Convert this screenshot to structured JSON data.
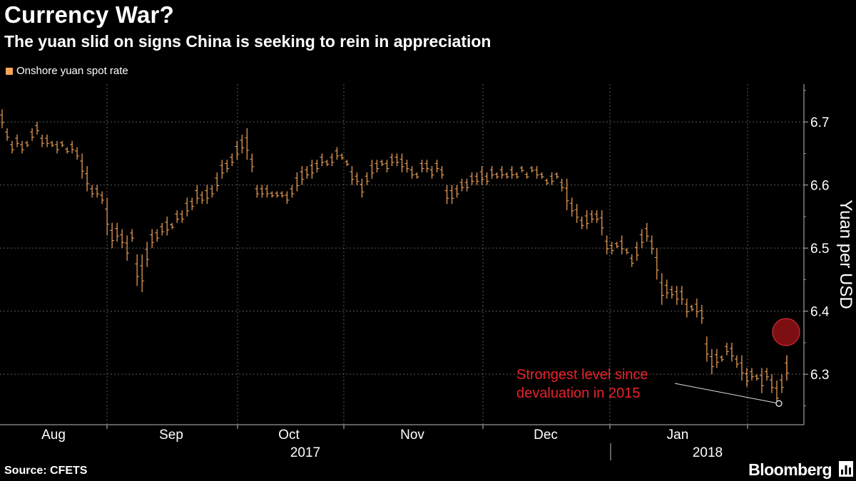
{
  "header": {
    "title": "Currency War?",
    "subtitle": "The yuan slid on signs China is seeking to rein in appreciation"
  },
  "legend": {
    "label": "Onshore yuan spot rate",
    "color": "#f5a65b"
  },
  "footer": {
    "source": "Source: CFETS",
    "brand": "Bloomberg"
  },
  "annotation": {
    "lines": [
      "Strongest level since",
      "devaluation in 2015"
    ],
    "color": "#e8222b",
    "point_value": 6.2536
  },
  "chart_data": {
    "type": "ohlc",
    "title": "Currency War?",
    "subtitle": "The yuan slid on signs China is seeking to rein in appreciation",
    "ylabel": "Yuan per USD",
    "ylim": [
      6.22,
      6.76
    ],
    "yticks": [
      6.3,
      6.4,
      6.5,
      6.6,
      6.7
    ],
    "y_tick_labels": [
      "6.3",
      "6.4",
      "6.5",
      "6.6",
      "6.7"
    ],
    "x_month_labels": [
      "Aug",
      "Sep",
      "Oct",
      "Nov",
      "Dec",
      "Jan"
    ],
    "x_year_labels": [
      "2017",
      "2018"
    ],
    "grid": true,
    "legend_position": "top-left",
    "series": [
      {
        "name": "Onshore yuan spot rate",
        "color": "#f5a65b",
        "values": [
          [
            6.72,
            6.69
          ],
          [
            6.69,
            6.67
          ],
          [
            6.67,
            6.65
          ],
          [
            6.68,
            6.66
          ],
          [
            6.67,
            6.65
          ],
          [
            6.67,
            6.66
          ],
          [
            6.69,
            6.67
          ],
          [
            6.7,
            6.68
          ],
          [
            6.68,
            6.66
          ],
          [
            6.68,
            6.66
          ],
          [
            6.67,
            6.66
          ],
          [
            6.67,
            6.65
          ],
          [
            6.67,
            6.66
          ],
          [
            6.66,
            6.65
          ],
          [
            6.67,
            6.65
          ],
          [
            6.66,
            6.64
          ],
          [
            6.65,
            6.61
          ],
          [
            6.63,
            6.59
          ],
          [
            6.6,
            6.58
          ],
          [
            6.6,
            6.58
          ],
          [
            6.59,
            6.57
          ],
          [
            6.58,
            6.52
          ],
          [
            6.54,
            6.5
          ],
          [
            6.54,
            6.51
          ],
          [
            6.53,
            6.5
          ],
          [
            6.52,
            6.48
          ],
          [
            6.53,
            6.51
          ],
          [
            6.49,
            6.44
          ],
          [
            6.49,
            6.43
          ],
          [
            6.51,
            6.47
          ],
          [
            6.53,
            6.5
          ],
          [
            6.53,
            6.51
          ],
          [
            6.54,
            6.52
          ],
          [
            6.55,
            6.52
          ],
          [
            6.54,
            6.53
          ],
          [
            6.56,
            6.54
          ],
          [
            6.56,
            6.54
          ],
          [
            6.58,
            6.55
          ],
          [
            6.58,
            6.56
          ],
          [
            6.6,
            6.57
          ],
          [
            6.59,
            6.57
          ],
          [
            6.6,
            6.57
          ],
          [
            6.6,
            6.58
          ],
          [
            6.62,
            6.59
          ],
          [
            6.64,
            6.61
          ],
          [
            6.64,
            6.62
          ],
          [
            6.65,
            6.63
          ],
          [
            6.67,
            6.64
          ],
          [
            6.68,
            6.65
          ],
          [
            6.69,
            6.64
          ],
          [
            6.65,
            6.62
          ],
          [
            6.6,
            6.58
          ],
          [
            6.6,
            6.58
          ],
          [
            6.6,
            6.58
          ],
          [
            6.59,
            6.58
          ],
          [
            6.59,
            6.58
          ],
          [
            6.59,
            6.58
          ],
          [
            6.59,
            6.57
          ],
          [
            6.6,
            6.58
          ],
          [
            6.62,
            6.59
          ],
          [
            6.63,
            6.6
          ],
          [
            6.63,
            6.61
          ],
          [
            6.64,
            6.61
          ],
          [
            6.64,
            6.62
          ],
          [
            6.65,
            6.63
          ],
          [
            6.64,
            6.63
          ],
          [
            6.65,
            6.63
          ],
          [
            6.66,
            6.64
          ],
          [
            6.65,
            6.64
          ],
          [
            6.64,
            6.63
          ],
          [
            6.63,
            6.6
          ],
          [
            6.62,
            6.6
          ],
          [
            6.61,
            6.58
          ],
          [
            6.62,
            6.6
          ],
          [
            6.64,
            6.61
          ],
          [
            6.64,
            6.62
          ],
          [
            6.64,
            6.63
          ],
          [
            6.64,
            6.62
          ],
          [
            6.65,
            6.63
          ],
          [
            6.65,
            6.63
          ],
          [
            6.65,
            6.62
          ],
          [
            6.64,
            6.62
          ],
          [
            6.63,
            6.61
          ],
          [
            6.62,
            6.61
          ],
          [
            6.64,
            6.62
          ],
          [
            6.64,
            6.62
          ],
          [
            6.63,
            6.61
          ],
          [
            6.64,
            6.62
          ],
          [
            6.63,
            6.61
          ],
          [
            6.6,
            6.57
          ],
          [
            6.6,
            6.57
          ],
          [
            6.6,
            6.58
          ],
          [
            6.61,
            6.59
          ],
          [
            6.61,
            6.59
          ],
          [
            6.62,
            6.6
          ],
          [
            6.62,
            6.6
          ],
          [
            6.63,
            6.6
          ],
          [
            6.62,
            6.6
          ],
          [
            6.63,
            6.61
          ],
          [
            6.62,
            6.61
          ],
          [
            6.63,
            6.61
          ],
          [
            6.62,
            6.61
          ],
          [
            6.63,
            6.61
          ],
          [
            6.62,
            6.61
          ],
          [
            6.63,
            6.62
          ],
          [
            6.62,
            6.61
          ],
          [
            6.63,
            6.62
          ],
          [
            6.63,
            6.61
          ],
          [
            6.62,
            6.61
          ],
          [
            6.61,
            6.6
          ],
          [
            6.62,
            6.6
          ],
          [
            6.62,
            6.61
          ],
          [
            6.61,
            6.59
          ],
          [
            6.61,
            6.56
          ],
          [
            6.58,
            6.55
          ],
          [
            6.57,
            6.54
          ],
          [
            6.55,
            6.53
          ],
          [
            6.56,
            6.53
          ],
          [
            6.56,
            6.54
          ],
          [
            6.56,
            6.54
          ],
          [
            6.56,
            6.52
          ],
          [
            6.52,
            6.49
          ],
          [
            6.51,
            6.49
          ],
          [
            6.51,
            6.5
          ],
          [
            6.52,
            6.49
          ],
          [
            6.5,
            6.49
          ],
          [
            6.49,
            6.47
          ],
          [
            6.51,
            6.48
          ],
          [
            6.53,
            6.5
          ],
          [
            6.54,
            6.51
          ],
          [
            6.52,
            6.49
          ],
          [
            6.5,
            6.45
          ],
          [
            6.46,
            6.41
          ],
          [
            6.45,
            6.42
          ],
          [
            6.44,
            6.42
          ],
          [
            6.44,
            6.41
          ],
          [
            6.44,
            6.41
          ],
          [
            6.42,
            6.39
          ],
          [
            6.41,
            6.4
          ],
          [
            6.42,
            6.39
          ],
          [
            6.41,
            6.38
          ],
          [
            6.36,
            6.32
          ],
          [
            6.34,
            6.3
          ],
          [
            6.34,
            6.31
          ],
          [
            6.33,
            6.32
          ],
          [
            6.35,
            6.33
          ],
          [
            6.35,
            6.32
          ],
          [
            6.33,
            6.31
          ],
          [
            6.33,
            6.29
          ],
          [
            6.31,
            6.28
          ],
          [
            6.31,
            6.29
          ],
          [
            6.3,
            6.29
          ],
          [
            6.31,
            6.27
          ],
          [
            6.31,
            6.29
          ],
          [
            6.3,
            6.27
          ],
          [
            6.29,
            6.25
          ],
          [
            6.3,
            6.27
          ],
          [
            6.33,
            6.29
          ]
        ]
      }
    ]
  }
}
